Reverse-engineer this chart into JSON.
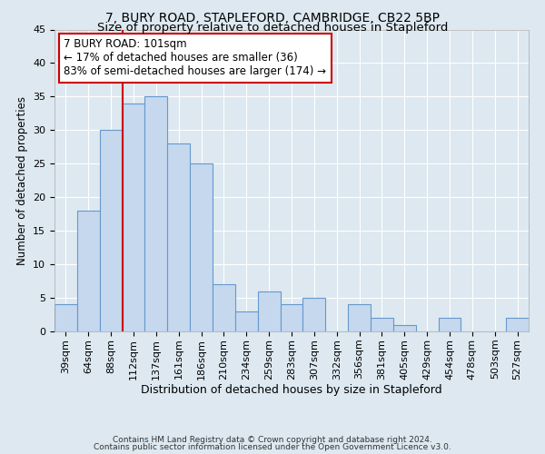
{
  "title": "7, BURY ROAD, STAPLEFORD, CAMBRIDGE, CB22 5BP",
  "subtitle": "Size of property relative to detached houses in Stapleford",
  "xlabel_bottom": "Distribution of detached houses by size in Stapleford",
  "ylabel": "Number of detached properties",
  "categories": [
    "39sqm",
    "64sqm",
    "88sqm",
    "112sqm",
    "137sqm",
    "161sqm",
    "186sqm",
    "210sqm",
    "234sqm",
    "259sqm",
    "283sqm",
    "307sqm",
    "332sqm",
    "356sqm",
    "381sqm",
    "405sqm",
    "429sqm",
    "454sqm",
    "478sqm",
    "503sqm",
    "527sqm"
  ],
  "values": [
    4,
    18,
    30,
    34,
    35,
    28,
    25,
    7,
    3,
    6,
    4,
    5,
    0,
    4,
    2,
    1,
    0,
    2,
    0,
    0,
    2
  ],
  "bar_color": "#c5d8ee",
  "bar_edge_color": "#6699cc",
  "bar_edge_width": 0.8,
  "vline_color": "#cc0000",
  "annotation_text": "7 BURY ROAD: 101sqm\n← 17% of detached houses are smaller (36)\n83% of semi-detached houses are larger (174) →",
  "annotation_box_color": "#ffffff",
  "annotation_box_edge_color": "#cc0000",
  "ylim": [
    0,
    45
  ],
  "yticks": [
    0,
    5,
    10,
    15,
    20,
    25,
    30,
    35,
    40,
    45
  ],
  "bg_color": "#dde8f0",
  "grid_color": "#ffffff",
  "footer_line1": "Contains HM Land Registry data © Crown copyright and database right 2024.",
  "footer_line2": "Contains public sector information licensed under the Open Government Licence v3.0.",
  "title_fontsize": 10,
  "subtitle_fontsize": 9.5,
  "tick_fontsize": 8,
  "ylabel_fontsize": 8.5,
  "xlabel_fontsize": 9,
  "footer_fontsize": 6.5
}
